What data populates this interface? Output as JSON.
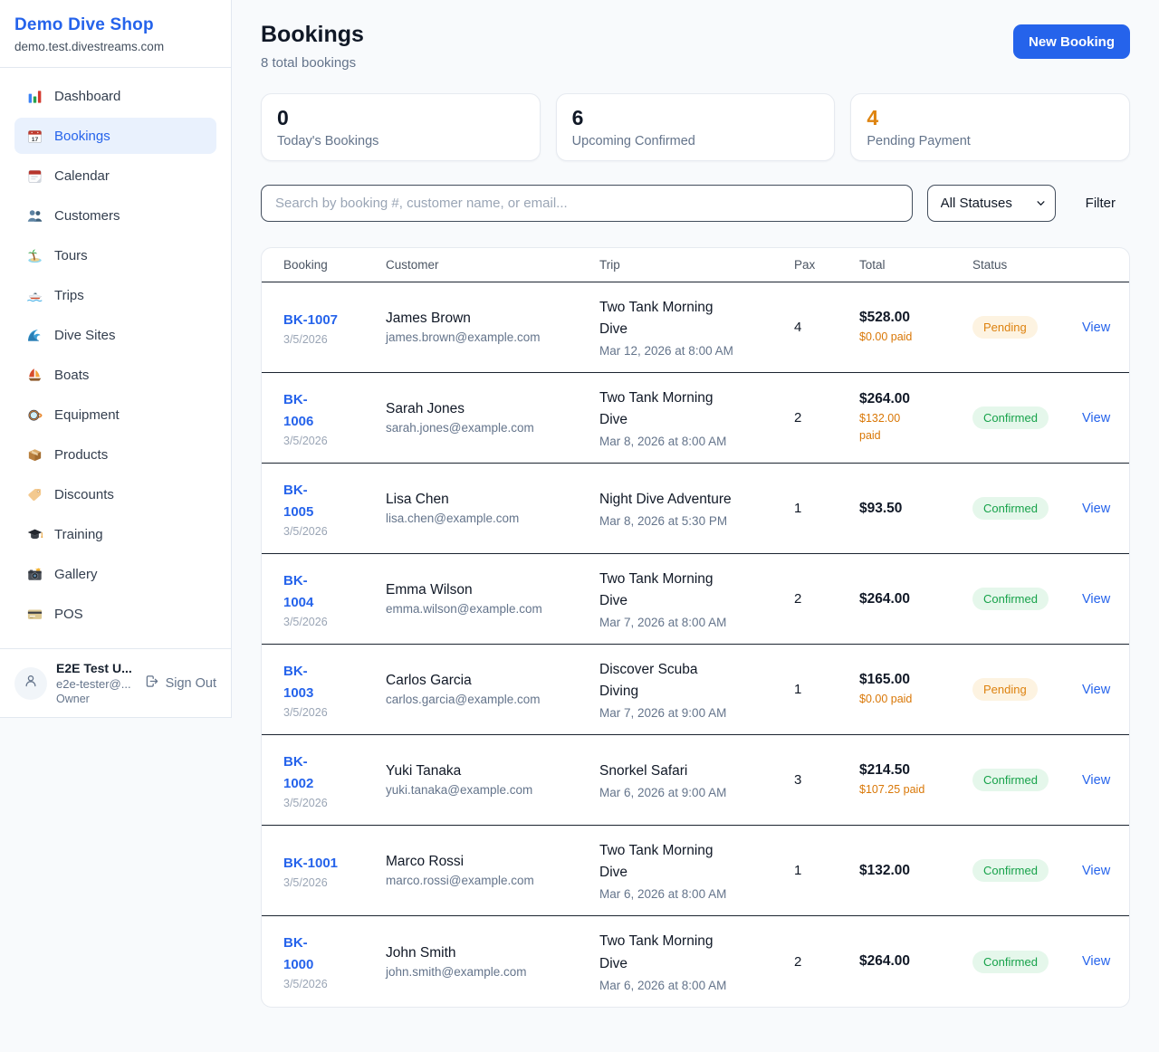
{
  "brand": {
    "name": "Demo Dive Shop",
    "domain": "demo.test.divestreams.com"
  },
  "sidebar": {
    "items": [
      {
        "label": "Dashboard",
        "icon": "bar-chart",
        "active": false
      },
      {
        "label": "Bookings",
        "icon": "calendar-date",
        "active": true
      },
      {
        "label": "Calendar",
        "icon": "calendar-tear",
        "active": false
      },
      {
        "label": "Customers",
        "icon": "people",
        "active": false
      },
      {
        "label": "Tours",
        "icon": "island",
        "active": false
      },
      {
        "label": "Trips",
        "icon": "speedboat",
        "active": false
      },
      {
        "label": "Dive Sites",
        "icon": "wave",
        "active": false
      },
      {
        "label": "Boats",
        "icon": "sailboat",
        "active": false
      },
      {
        "label": "Equipment",
        "icon": "dive-mask",
        "active": false
      },
      {
        "label": "Products",
        "icon": "package",
        "active": false
      },
      {
        "label": "Discounts",
        "icon": "label-tag",
        "active": false
      },
      {
        "label": "Training",
        "icon": "graduation-cap",
        "active": false
      },
      {
        "label": "Gallery",
        "icon": "camera",
        "active": false
      },
      {
        "label": "POS",
        "icon": "credit-card",
        "active": false
      }
    ],
    "user": {
      "name": "E2E Test U...",
      "email": "e2e-tester@...",
      "role": "Owner",
      "sign_out_label": "Sign Out"
    }
  },
  "icons": {
    "avatar": "person",
    "sign_out": "logout",
    "select_chevron": "chevron-down"
  },
  "header": {
    "title": "Bookings",
    "subtitle": "8 total bookings",
    "new_booking_label": "New Booking"
  },
  "stats": [
    {
      "value": "0",
      "label": "Today's Bookings",
      "color": "#101826"
    },
    {
      "value": "6",
      "label": "Upcoming Confirmed",
      "color": "#101826"
    },
    {
      "value": "4",
      "label": "Pending Payment",
      "color": "#de8410"
    }
  ],
  "filters": {
    "search_placeholder": "Search by booking #, customer name, or email...",
    "status_selected": "All Statuses",
    "filter_label": "Filter"
  },
  "table": {
    "columns": [
      "Booking",
      "Customer",
      "Trip",
      "Pax",
      "Total",
      "Status"
    ],
    "view_label": "View",
    "status_colors": {
      "Pending": {
        "bg": "#fdf3e1",
        "fg": "#dd820f"
      },
      "Confirmed": {
        "bg": "#e5f7eb",
        "fg": "#17a24a"
      }
    },
    "rows": [
      {
        "id": "BK-1007",
        "id_two_line": false,
        "date": "3/5/2026",
        "customer": "James Brown",
        "email": "james.brown@example.com",
        "trip": "Two Tank Morning Dive",
        "trip_datetime": "Mar 12, 2026 at 8:00 AM",
        "pax": "4",
        "total": "$528.00",
        "paid": "$0.00 paid",
        "paid_two_line": false,
        "status": "Pending"
      },
      {
        "id": "BK-1006",
        "id_two_line": true,
        "date": "3/5/2026",
        "customer": "Sarah Jones",
        "email": "sarah.jones@example.com",
        "trip": "Two Tank Morning Dive",
        "trip_datetime": "Mar 8, 2026 at 8:00 AM",
        "pax": "2",
        "total": "$264.00",
        "paid": "$132.00 paid",
        "paid_two_line": true,
        "status": "Confirmed"
      },
      {
        "id": "BK-1005",
        "id_two_line": true,
        "date": "3/5/2026",
        "customer": "Lisa Chen",
        "email": "lisa.chen@example.com",
        "trip": "Night Dive Adventure",
        "trip_datetime": "Mar 8, 2026 at 5:30 PM",
        "pax": "1",
        "total": "$93.50",
        "paid": "",
        "paid_two_line": false,
        "status": "Confirmed"
      },
      {
        "id": "BK-1004",
        "id_two_line": true,
        "date": "3/5/2026",
        "customer": "Emma Wilson",
        "email": "emma.wilson@example.com",
        "trip": "Two Tank Morning Dive",
        "trip_datetime": "Mar 7, 2026 at 8:00 AM",
        "pax": "2",
        "total": "$264.00",
        "paid": "",
        "paid_two_line": false,
        "status": "Confirmed"
      },
      {
        "id": "BK-1003",
        "id_two_line": true,
        "date": "3/5/2026",
        "customer": "Carlos Garcia",
        "email": "carlos.garcia@example.com",
        "trip": "Discover Scuba Diving",
        "trip_datetime": "Mar 7, 2026 at 9:00 AM",
        "pax": "1",
        "total": "$165.00",
        "paid": "$0.00 paid",
        "paid_two_line": false,
        "status": "Pending"
      },
      {
        "id": "BK-1002",
        "id_two_line": true,
        "date": "3/5/2026",
        "customer": "Yuki Tanaka",
        "email": "yuki.tanaka@example.com",
        "trip": "Snorkel Safari",
        "trip_datetime": "Mar 6, 2026 at 9:00 AM",
        "pax": "3",
        "total": "$214.50",
        "paid": "$107.25 paid",
        "paid_two_line": false,
        "status": "Confirmed"
      },
      {
        "id": "BK-1001",
        "id_two_line": false,
        "date": "3/5/2026",
        "customer": "Marco Rossi",
        "email": "marco.rossi@example.com",
        "trip": "Two Tank Morning Dive",
        "trip_datetime": "Mar 6, 2026 at 8:00 AM",
        "pax": "1",
        "total": "$132.00",
        "paid": "",
        "paid_two_line": false,
        "status": "Confirmed"
      },
      {
        "id": "BK-1000",
        "id_two_line": true,
        "date": "3/5/2026",
        "customer": "John Smith",
        "email": "john.smith@example.com",
        "trip": "Two Tank Morning Dive",
        "trip_datetime": "Mar 6, 2026 at 8:00 AM",
        "pax": "2",
        "total": "$264.00",
        "paid": "",
        "paid_two_line": false,
        "status": "Confirmed"
      }
    ]
  }
}
